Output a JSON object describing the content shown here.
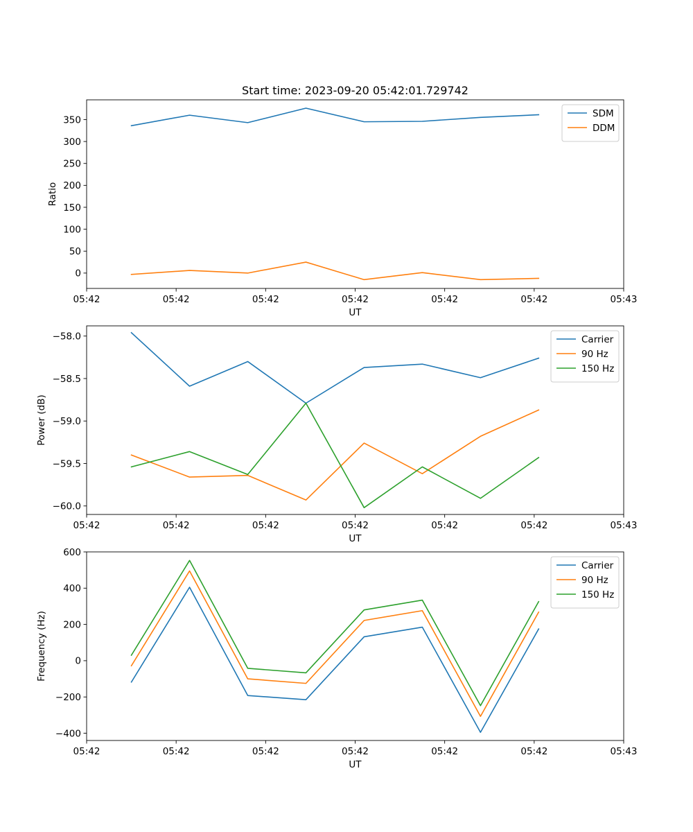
{
  "title": "Start time: 2023-09-20 05:42:01.729742",
  "chart_data": [
    {
      "type": "line",
      "ylabel": "Ratio",
      "xlabel": "UT",
      "xlim": [
        0,
        12
      ],
      "ylim": [
        -35,
        395
      ],
      "yticks": [
        0,
        50,
        100,
        150,
        200,
        250,
        300,
        350
      ],
      "xticks": [
        {
          "x": 0,
          "label": "05:42"
        },
        {
          "x": 2,
          "label": "05:42"
        },
        {
          "x": 4,
          "label": "05:42"
        },
        {
          "x": 6,
          "label": "05:42"
        },
        {
          "x": 8,
          "label": "05:42"
        },
        {
          "x": 10,
          "label": "05:42"
        },
        {
          "x": 12,
          "label": "05:43"
        }
      ],
      "x": [
        1,
        2.3,
        3.6,
        4.9,
        6.2,
        7.5,
        8.8,
        10.1
      ],
      "series": [
        {
          "name": "SDM",
          "color": "#1f77b4",
          "values": [
            336,
            360,
            343,
            376,
            345,
            346,
            355,
            361
          ]
        },
        {
          "name": "DDM",
          "color": "#ff7f0e",
          "values": [
            -3,
            6,
            0,
            25,
            -15,
            1,
            -15,
            -12
          ]
        }
      ]
    },
    {
      "type": "line",
      "ylabel": "Power (dB)",
      "xlabel": "UT",
      "xlim": [
        0,
        12
      ],
      "ylim": [
        -60.1,
        -57.88
      ],
      "yticks": [
        -60.0,
        -59.5,
        -59.0,
        -58.5,
        -58.0
      ],
      "yticks_labels": [
        "−60.0",
        "−59.5",
        "−59.0",
        "−58.5",
        "−58.0"
      ],
      "xticks": [
        {
          "x": 0,
          "label": "05:42"
        },
        {
          "x": 2,
          "label": "05:42"
        },
        {
          "x": 4,
          "label": "05:42"
        },
        {
          "x": 6,
          "label": "05:42"
        },
        {
          "x": 8,
          "label": "05:42"
        },
        {
          "x": 10,
          "label": "05:42"
        },
        {
          "x": 12,
          "label": "05:43"
        }
      ],
      "x": [
        1,
        2.3,
        3.6,
        4.9,
        6.2,
        7.5,
        8.8,
        10.1
      ],
      "series": [
        {
          "name": "Carrier",
          "color": "#1f77b4",
          "values": [
            -57.96,
            -58.59,
            -58.3,
            -58.79,
            -58.37,
            -58.33,
            -58.49,
            -58.26
          ]
        },
        {
          "name": "90 Hz",
          "color": "#ff7f0e",
          "values": [
            -59.4,
            -59.66,
            -59.64,
            -59.93,
            -59.26,
            -59.62,
            -59.18,
            -58.87
          ]
        },
        {
          "name": "150 Hz",
          "color": "#2ca02c",
          "values": [
            -59.54,
            -59.36,
            -59.63,
            -58.79,
            -60.02,
            -59.54,
            -59.91,
            -59.43
          ]
        }
      ]
    },
    {
      "type": "line",
      "ylabel": "Frequency (Hz)",
      "xlabel": "UT",
      "xlim": [
        0,
        12
      ],
      "ylim": [
        -440,
        600
      ],
      "yticks": [
        -400,
        -200,
        0,
        200,
        400,
        600
      ],
      "yticks_labels": [
        "−400",
        "−200",
        "0",
        "200",
        "400",
        "600"
      ],
      "xticks": [
        {
          "x": 0,
          "label": "05:42"
        },
        {
          "x": 2,
          "label": "05:42"
        },
        {
          "x": 4,
          "label": "05:42"
        },
        {
          "x": 6,
          "label": "05:42"
        },
        {
          "x": 8,
          "label": "05:42"
        },
        {
          "x": 10,
          "label": "05:42"
        },
        {
          "x": 12,
          "label": "05:43"
        }
      ],
      "x": [
        1,
        2.3,
        3.6,
        4.9,
        6.2,
        7.5,
        8.8,
        10.1
      ],
      "series": [
        {
          "name": "Carrier",
          "color": "#1f77b4",
          "values": [
            -118,
            405,
            -192,
            -215,
            132,
            185,
            -395,
            175
          ]
        },
        {
          "name": "90 Hz",
          "color": "#ff7f0e",
          "values": [
            -28,
            495,
            -100,
            -125,
            222,
            276,
            -307,
            268
          ]
        },
        {
          "name": "150 Hz",
          "color": "#2ca02c",
          "values": [
            30,
            553,
            -42,
            -67,
            280,
            334,
            -248,
            326
          ]
        }
      ]
    }
  ]
}
